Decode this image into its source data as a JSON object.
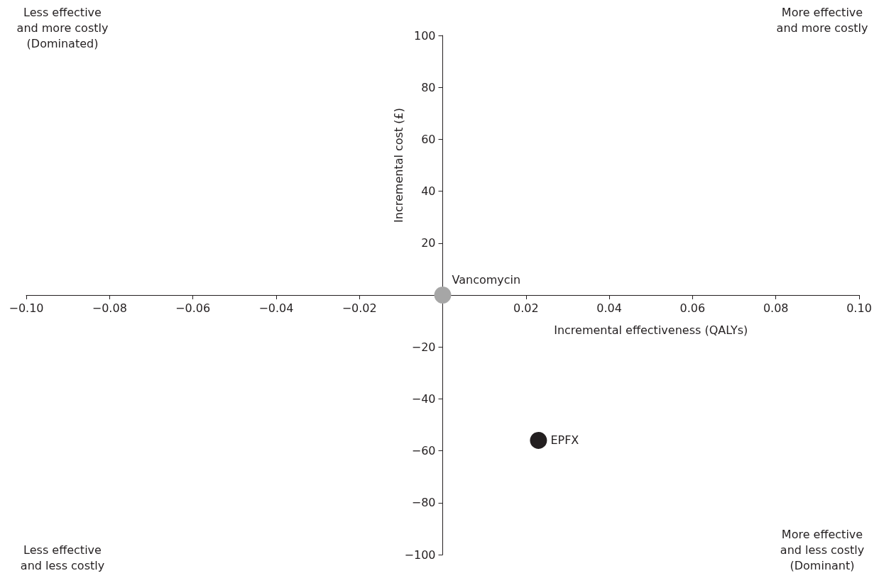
{
  "chart_data": {
    "type": "scatter",
    "xlabel": "Incremental effectiveness (QALYs)",
    "ylabel": "Incremental cost (£)",
    "series": [
      {
        "name": "Vancomycin",
        "color": "#a6a6a6",
        "x": [
          0
        ],
        "values": [
          0
        ]
      },
      {
        "name": "EPFX",
        "color": "#231f20",
        "x": [
          0.023
        ],
        "values": [
          -56
        ]
      }
    ],
    "xlim": [
      -0.1,
      0.1
    ],
    "xticks": [
      {
        "value": -0.1,
        "label": "−0.10"
      },
      {
        "value": -0.08,
        "label": "−0.08"
      },
      {
        "value": -0.06,
        "label": "−0.06"
      },
      {
        "value": -0.04,
        "label": "−0.04"
      },
      {
        "value": -0.02,
        "label": "−0.02"
      },
      {
        "value": 0.02,
        "label": "0.02"
      },
      {
        "value": 0.04,
        "label": "0.04"
      },
      {
        "value": 0.06,
        "label": "0.06"
      },
      {
        "value": 0.08,
        "label": "0.08"
      },
      {
        "value": 0.1,
        "label": "0.10"
      }
    ],
    "ylim": [
      -100,
      100
    ],
    "yticks": [
      {
        "value": -100,
        "label": "−100"
      },
      {
        "value": -80,
        "label": "−80"
      },
      {
        "value": -60,
        "label": "−60"
      },
      {
        "value": -40,
        "label": "−40"
      },
      {
        "value": -20,
        "label": "−20"
      },
      20,
      40,
      60,
      80,
      100
    ],
    "marker": "circle",
    "grid": false,
    "legend": false,
    "annotations": [
      "Less effective\nand more costly\n(Dominated)",
      "More effective\nand more costly",
      "Less effective\nand less costly",
      "More effective\nand less costly\n(Dominant)"
    ]
  }
}
